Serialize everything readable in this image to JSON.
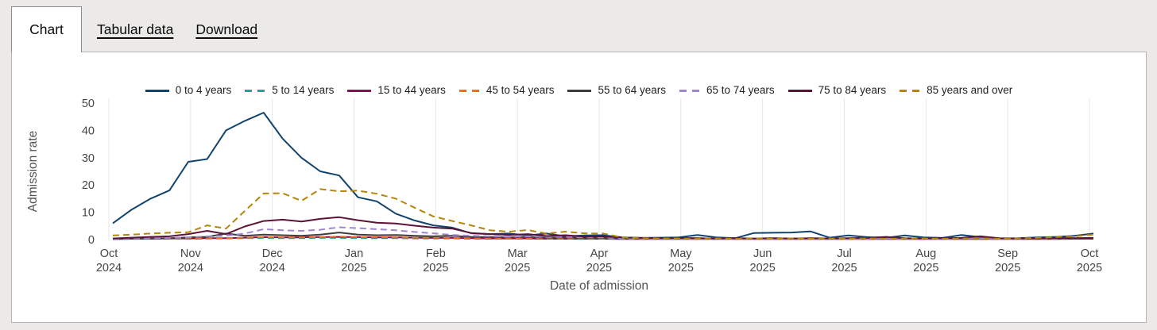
{
  "tabs": {
    "chart": "Chart",
    "tabular": "Tabular data",
    "download": "Download"
  },
  "chart_data": {
    "type": "line",
    "title": "",
    "xlabel": "Date of admission",
    "ylabel": "Admission rate",
    "ylim": [
      0,
      50
    ],
    "yticks": [
      0,
      10,
      20,
      30,
      40,
      50
    ],
    "grid": "vertical-only",
    "legend_position": "top-center",
    "x_unit": "weekly",
    "x_tick_labels": [
      [
        "Oct",
        "2024"
      ],
      [
        "Nov",
        "2024"
      ],
      [
        "Dec",
        "2024"
      ],
      [
        "Jan",
        "2025"
      ],
      [
        "Feb",
        "2025"
      ],
      [
        "Mar",
        "2025"
      ],
      [
        "Apr",
        "2025"
      ],
      [
        "May",
        "2025"
      ],
      [
        "Jun",
        "2025"
      ],
      [
        "Jul",
        "2025"
      ],
      [
        "Aug",
        "2025"
      ],
      [
        "Sep",
        "2025"
      ],
      [
        "Oct",
        "2025"
      ]
    ],
    "series": [
      {
        "name": "0 to 4 years",
        "color": "#12436D",
        "dashed": false,
        "values": [
          6,
          11,
          15,
          18,
          28.5,
          29.5,
          40,
          43.5,
          46.5,
          37,
          30,
          25,
          23.5,
          15.5,
          14,
          9.5,
          7,
          5.2,
          4.4,
          2.3,
          2.0,
          2.2,
          1.5,
          2.2,
          1.2,
          1.5,
          1.6,
          0.8,
          0.6,
          0.7,
          0.8,
          1.7,
          0.8,
          0.5,
          2.4,
          2.5,
          2.6,
          3.0,
          0.7,
          1.5,
          0.9,
          0.6,
          1.5,
          0.8,
          0.6,
          1.7,
          0.9,
          0.4,
          0.5,
          0.8,
          1.0,
          1.4,
          2.2
        ]
      },
      {
        "name": "5 to 14 years",
        "color": "#28A197",
        "dashed": true,
        "values": [
          0.2,
          0.2,
          0.3,
          0.3,
          0.3,
          0.4,
          0.4,
          0.5,
          0.6,
          0.5,
          0.5,
          0.6,
          0.6,
          0.5,
          0.5,
          0.5,
          0.4,
          0.4,
          0.4,
          0.3,
          0.3,
          0.3,
          0.3,
          0.3,
          0.3,
          0.2,
          0.3,
          0.2,
          0.2,
          0.2,
          0.2,
          0.2,
          0.2,
          0.2,
          0.2,
          0.2,
          0.2,
          0.2,
          0.2,
          0.2,
          0.2,
          0.2,
          0.2,
          0.2,
          0.2,
          0.2,
          0.2,
          0.2,
          0.2,
          0.2,
          0.2,
          0.3,
          0.3
        ]
      },
      {
        "name": "15 to 44 years",
        "color": "#801650",
        "dashed": false,
        "values": [
          0.2,
          0.3,
          0.3,
          0.4,
          0.4,
          0.5,
          0.5,
          0.7,
          0.9,
          0.8,
          0.8,
          0.9,
          1.0,
          0.9,
          0.8,
          0.8,
          0.7,
          0.6,
          0.6,
          0.5,
          0.4,
          0.4,
          0.4,
          0.3,
          0.3,
          0.3,
          0.3,
          0.2,
          0.2,
          0.2,
          0.2,
          0.2,
          0.2,
          0.2,
          0.2,
          0.2,
          0.2,
          0.2,
          0.2,
          0.2,
          0.2,
          0.2,
          0.2,
          0.2,
          0.2,
          0.2,
          0.2,
          0.2,
          0.2,
          0.2,
          0.2,
          0.3,
          0.3
        ]
      },
      {
        "name": "45 to 54 years",
        "color": "#F46A25",
        "dashed": true,
        "values": [
          0.3,
          0.3,
          0.4,
          0.4,
          0.5,
          0.6,
          0.5,
          0.7,
          0.9,
          0.8,
          0.8,
          0.9,
          1.1,
          0.9,
          0.9,
          0.8,
          0.7,
          0.7,
          0.6,
          0.5,
          0.5,
          0.4,
          0.5,
          0.4,
          0.4,
          0.4,
          0.4,
          0.3,
          0.3,
          0.3,
          0.3,
          0.2,
          0.3,
          0.2,
          0.2,
          0.3,
          0.2,
          0.2,
          0.3,
          0.2,
          0.2,
          0.3,
          0.2,
          0.2,
          0.3,
          0.2,
          0.2,
          0.3,
          0.2,
          0.3,
          0.3,
          0.3,
          0.4
        ]
      },
      {
        "name": "55 to 64 years",
        "color": "#3D3D3D",
        "dashed": false,
        "values": [
          0.2,
          0.3,
          0.4,
          0.5,
          0.8,
          1.0,
          2.2,
          1.4,
          1.8,
          1.6,
          1.4,
          1.8,
          2.6,
          1.8,
          1.6,
          1.7,
          1.4,
          1.2,
          1.4,
          1.0,
          0.9,
          0.8,
          1.0,
          0.7,
          0.8,
          0.6,
          0.7,
          0.5,
          0.4,
          0.4,
          0.4,
          0.3,
          0.3,
          0.3,
          0.3,
          0.3,
          0.3,
          0.3,
          0.3,
          0.3,
          0.3,
          0.3,
          0.3,
          0.3,
          0.3,
          0.3,
          0.3,
          0.3,
          0.3,
          0.3,
          0.3,
          0.3,
          0.4
        ]
      },
      {
        "name": "65 to 74 years",
        "color": "#A285D1",
        "dashed": true,
        "values": [
          0.3,
          0.4,
          0.5,
          0.6,
          0.8,
          1.2,
          1.4,
          2.2,
          3.8,
          3.4,
          3.2,
          3.6,
          4.5,
          4.2,
          3.8,
          3.4,
          2.8,
          2.3,
          1.7,
          1.4,
          1.2,
          1.0,
          1.2,
          0.9,
          1.0,
          0.8,
          0.8,
          0.5,
          0.4,
          0.3,
          0.4,
          0.3,
          0.3,
          0.3,
          0.3,
          0.3,
          0.3,
          0.3,
          0.3,
          0.3,
          0.3,
          0.4,
          0.3,
          0.3,
          0.3,
          0.4,
          0.4,
          0.3,
          0.3,
          0.4,
          0.4,
          0.5,
          0.6
        ]
      },
      {
        "name": "75 to 84 years",
        "color": "#5D1335",
        "dashed": false,
        "values": [
          0.4,
          0.7,
          1.0,
          1.2,
          2.0,
          3.2,
          2.0,
          4.8,
          6.8,
          7.3,
          6.6,
          7.6,
          8.2,
          7.1,
          6.2,
          5.9,
          5.1,
          4.4,
          4.0,
          2.4,
          2.0,
          1.7,
          2.0,
          1.3,
          1.6,
          1.1,
          1.2,
          0.8,
          0.6,
          0.5,
          0.6,
          0.5,
          0.4,
          0.5,
          0.4,
          0.5,
          0.4,
          0.5,
          0.4,
          0.5,
          0.6,
          1.0,
          0.5,
          0.4,
          0.5,
          0.6,
          1.2,
          0.5,
          0.4,
          0.5,
          0.6,
          0.5,
          0.6
        ]
      },
      {
        "name": "85 years and over",
        "color": "#B5860B",
        "dashed": true,
        "values": [
          1.5,
          1.8,
          2.2,
          2.5,
          2.7,
          5.2,
          4.0,
          10.5,
          16.9,
          17.0,
          14.2,
          18.5,
          17.7,
          17.9,
          16.8,
          15.0,
          11.7,
          8.5,
          6.8,
          5.2,
          3.4,
          2.9,
          3.5,
          2.2,
          2.9,
          2.3,
          2.2,
          0.8,
          0.5,
          0.4,
          0.4,
          0.3,
          0.4,
          0.3,
          0.4,
          0.3,
          0.4,
          0.3,
          0.4,
          0.3,
          0.4,
          0.3,
          0.4,
          0.4,
          0.3,
          0.4,
          0.4,
          0.3,
          0.4,
          0.6,
          0.9,
          1.2,
          1.8
        ]
      }
    ],
    "colors": {
      "grid": "#e7e7e7",
      "tick_text": "#454545",
      "axis_title_text": "#535353",
      "panel_background": "#ffffff",
      "page_background": "#ebeae8"
    }
  }
}
